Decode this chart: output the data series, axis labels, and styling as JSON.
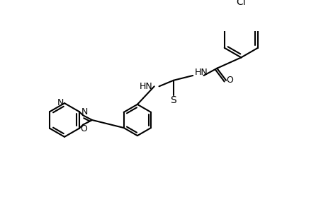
{
  "bg_color": "#ffffff",
  "line_color": "#000000",
  "line_width": 1.5,
  "font_size": 9,
  "figsize": [
    4.46,
    2.96
  ],
  "dpi": 100,
  "atoms": {
    "N_pyridine": "N",
    "O_oxazole": "O",
    "N_oxazole": "N",
    "S": "S",
    "O_carbonyl": "O",
    "Cl": "Cl",
    "HN1": "HN",
    "HN2": "HN"
  }
}
